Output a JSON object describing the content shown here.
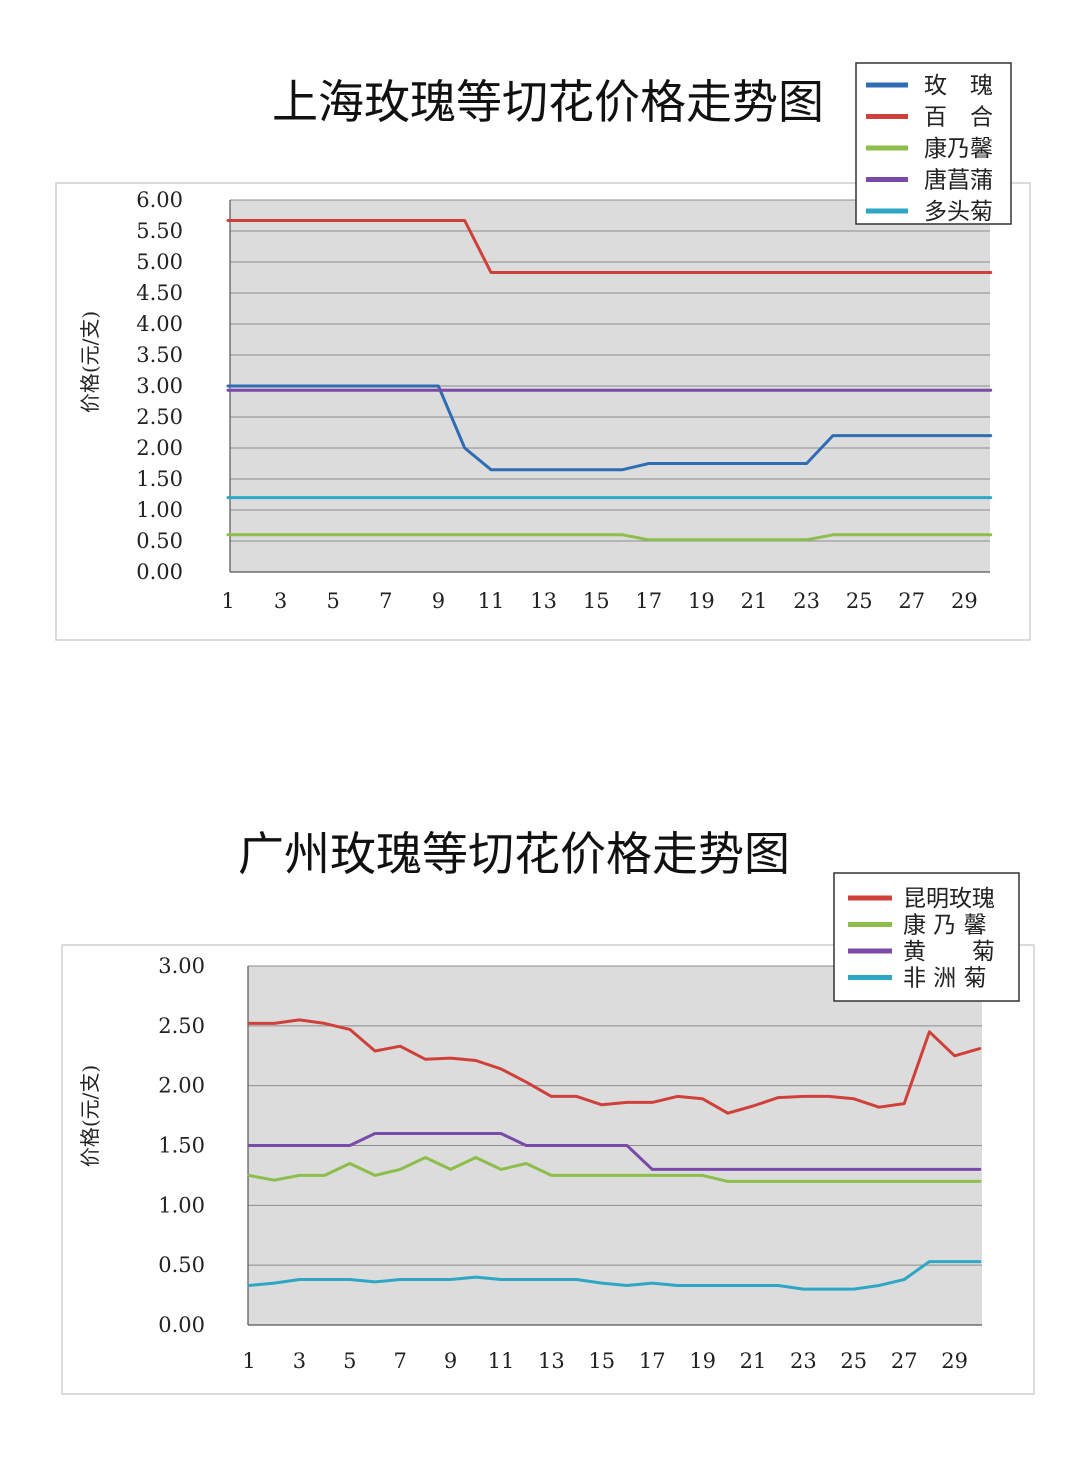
{
  "chart_data": [
    {
      "type": "line",
      "title": "上海玫瑰等切花价格走势图",
      "xlabel": "",
      "ylabel": "价格(元/支)",
      "x": [
        1,
        2,
        3,
        4,
        5,
        6,
        7,
        8,
        9,
        10,
        11,
        12,
        13,
        14,
        15,
        16,
        17,
        18,
        19,
        20,
        21,
        22,
        23,
        24,
        25,
        26,
        27,
        28,
        29,
        30
      ],
      "xticks": [
        "1",
        "3",
        "5",
        "7",
        "9",
        "11",
        "13",
        "15",
        "17",
        "19",
        "21",
        "23",
        "25",
        "27",
        "29"
      ],
      "ylim": [
        0,
        6
      ],
      "yticks": [
        "0.00",
        "0.50",
        "1.00",
        "1.50",
        "2.00",
        "2.50",
        "3.00",
        "3.50",
        "4.00",
        "4.50",
        "5.00",
        "5.50",
        "6.00"
      ],
      "grid": true,
      "legend_position": "top-right",
      "series": [
        {
          "name": "玫　瑰",
          "color": "#2e6db4",
          "values": [
            3.0,
            3.0,
            3.0,
            3.0,
            3.0,
            3.0,
            3.0,
            3.0,
            3.0,
            2.0,
            1.65,
            1.65,
            1.65,
            1.65,
            1.65,
            1.65,
            1.75,
            1.75,
            1.75,
            1.75,
            1.75,
            1.75,
            1.75,
            2.2,
            2.2,
            2.2,
            2.2,
            2.2,
            2.2,
            2.2
          ]
        },
        {
          "name": "百　合",
          "color": "#d0403a",
          "values": [
            5.67,
            5.67,
            5.67,
            5.67,
            5.67,
            5.67,
            5.67,
            5.67,
            5.67,
            5.67,
            4.83,
            4.83,
            4.83,
            4.83,
            4.83,
            4.83,
            4.83,
            4.83,
            4.83,
            4.83,
            4.83,
            4.83,
            4.83,
            4.83,
            4.83,
            4.83,
            4.83,
            4.83,
            4.83,
            4.83
          ]
        },
        {
          "name": "康乃馨",
          "color": "#8dbd4a",
          "values": [
            0.6,
            0.6,
            0.6,
            0.6,
            0.6,
            0.6,
            0.6,
            0.6,
            0.6,
            0.6,
            0.6,
            0.6,
            0.6,
            0.6,
            0.6,
            0.6,
            0.52,
            0.52,
            0.52,
            0.52,
            0.52,
            0.52,
            0.52,
            0.6,
            0.6,
            0.6,
            0.6,
            0.6,
            0.6,
            0.6
          ]
        },
        {
          "name": "唐菖蒲",
          "color": "#7a4aa8",
          "values": [
            2.93,
            2.93,
            2.93,
            2.93,
            2.93,
            2.93,
            2.93,
            2.93,
            2.93,
            2.93,
            2.93,
            2.93,
            2.93,
            2.93,
            2.93,
            2.93,
            2.93,
            2.93,
            2.93,
            2.93,
            2.93,
            2.93,
            2.93,
            2.93,
            2.93,
            2.93,
            2.93,
            2.93,
            2.93,
            2.93
          ]
        },
        {
          "name": "多头菊",
          "color": "#2ea7c4",
          "values": [
            1.2,
            1.2,
            1.2,
            1.2,
            1.2,
            1.2,
            1.2,
            1.2,
            1.2,
            1.2,
            1.2,
            1.2,
            1.2,
            1.2,
            1.2,
            1.2,
            1.2,
            1.2,
            1.2,
            1.2,
            1.2,
            1.2,
            1.2,
            1.2,
            1.2,
            1.2,
            1.2,
            1.2,
            1.2,
            1.2
          ]
        }
      ]
    },
    {
      "type": "line",
      "title": "广州玫瑰等切花价格走势图",
      "xlabel": "",
      "ylabel": "价格(元/支)",
      "x": [
        1,
        2,
        3,
        4,
        5,
        6,
        7,
        8,
        9,
        10,
        11,
        12,
        13,
        14,
        15,
        16,
        17,
        18,
        19,
        20,
        21,
        22,
        23,
        24,
        25,
        26,
        27,
        28,
        29,
        30
      ],
      "xticks": [
        "1",
        "3",
        "5",
        "7",
        "9",
        "11",
        "13",
        "15",
        "17",
        "19",
        "21",
        "23",
        "25",
        "27",
        "29"
      ],
      "ylim": [
        0,
        3
      ],
      "yticks": [
        "0.00",
        "0.50",
        "1.00",
        "1.50",
        "2.00",
        "2.50",
        "3.00"
      ],
      "grid": true,
      "legend_position": "top-right",
      "series": [
        {
          "name": "昆明玫瑰",
          "color": "#d0403a",
          "values": [
            2.52,
            2.52,
            2.55,
            2.52,
            2.47,
            2.29,
            2.33,
            2.22,
            2.23,
            2.21,
            2.14,
            2.03,
            1.91,
            1.91,
            1.84,
            1.86,
            1.86,
            1.91,
            1.89,
            1.77,
            1.83,
            1.9,
            1.91,
            1.91,
            1.89,
            1.82,
            1.85,
            2.45,
            2.25,
            2.31
          ]
        },
        {
          "name": "康 乃 馨",
          "color": "#8dbd4a",
          "values": [
            1.25,
            1.21,
            1.25,
            1.25,
            1.35,
            1.25,
            1.3,
            1.4,
            1.3,
            1.4,
            1.3,
            1.35,
            1.25,
            1.25,
            1.25,
            1.25,
            1.25,
            1.25,
            1.25,
            1.2,
            1.2,
            1.2,
            1.2,
            1.2,
            1.2,
            1.2,
            1.2,
            1.2,
            1.2,
            1.2
          ]
        },
        {
          "name": "黄　　菊",
          "color": "#7a4aa8",
          "values": [
            1.5,
            1.5,
            1.5,
            1.5,
            1.5,
            1.6,
            1.6,
            1.6,
            1.6,
            1.6,
            1.6,
            1.5,
            1.5,
            1.5,
            1.5,
            1.5,
            1.3,
            1.3,
            1.3,
            1.3,
            1.3,
            1.3,
            1.3,
            1.3,
            1.3,
            1.3,
            1.3,
            1.3,
            1.3,
            1.3
          ]
        },
        {
          "name": "非 洲 菊",
          "color": "#2ea7c4",
          "values": [
            0.33,
            0.35,
            0.38,
            0.38,
            0.38,
            0.36,
            0.38,
            0.38,
            0.38,
            0.4,
            0.38,
            0.38,
            0.38,
            0.38,
            0.35,
            0.33,
            0.35,
            0.33,
            0.33,
            0.33,
            0.33,
            0.33,
            0.3,
            0.3,
            0.3,
            0.33,
            0.38,
            0.53,
            0.53,
            0.53
          ]
        }
      ]
    }
  ]
}
